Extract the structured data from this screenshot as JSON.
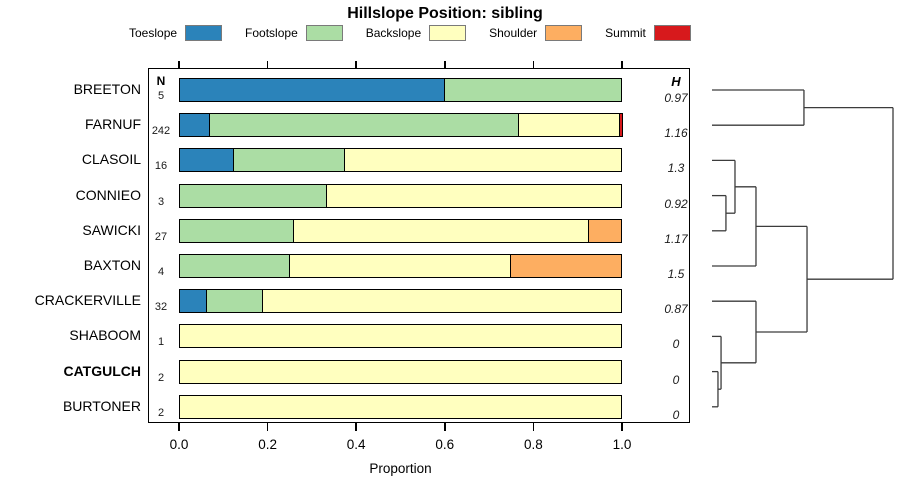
{
  "title": "Hillslope Position: sibling",
  "legend": {
    "items": [
      {
        "label": "Toeslope",
        "color": "#2B83BA"
      },
      {
        "label": "Footslope",
        "color": "#ABDDA4"
      },
      {
        "label": "Backslope",
        "color": "#FFFFBF"
      },
      {
        "label": "Shoulder",
        "color": "#FDAE61"
      },
      {
        "label": "Summit",
        "color": "#D7191C"
      }
    ]
  },
  "columns": {
    "n_header": "N",
    "h_header": "H"
  },
  "axis": {
    "label": "Proportion",
    "ticks": [
      "0.0",
      "0.2",
      "0.4",
      "0.6",
      "0.8",
      "1.0"
    ],
    "tick_values": [
      0,
      0.2,
      0.4,
      0.6,
      0.8,
      1.0
    ],
    "range": [
      0.0,
      1.0
    ]
  },
  "chart_data": {
    "type": "bar",
    "orientation": "horizontal-stacked",
    "title": "Hillslope Position: sibling",
    "xlabel": "Proportion",
    "xlim": [
      0.0,
      1.0
    ],
    "categories": [
      "Toeslope",
      "Footslope",
      "Backslope",
      "Shoulder",
      "Summit"
    ],
    "rows": [
      {
        "label": "BREETON",
        "n": "5",
        "h": "0.97",
        "bold": false,
        "segments": [
          {
            "category": "Toeslope",
            "value": 0.6
          },
          {
            "category": "Footslope",
            "value": 0.4
          }
        ]
      },
      {
        "label": "FARNUF",
        "n": "242",
        "h": "1.16",
        "bold": false,
        "segments": [
          {
            "category": "Toeslope",
            "value": 0.07
          },
          {
            "category": "Footslope",
            "value": 0.698
          },
          {
            "category": "Backslope",
            "value": 0.228
          },
          {
            "category": "Summit",
            "value": 0.004
          }
        ]
      },
      {
        "label": "CLASOIL",
        "n": "16",
        "h": "1.3",
        "bold": false,
        "segments": [
          {
            "category": "Toeslope",
            "value": 0.125
          },
          {
            "category": "Footslope",
            "value": 0.25
          },
          {
            "category": "Backslope",
            "value": 0.625
          }
        ]
      },
      {
        "label": "CONNIEO",
        "n": "3",
        "h": "0.92",
        "bold": false,
        "segments": [
          {
            "category": "Footslope",
            "value": 0.333
          },
          {
            "category": "Backslope",
            "value": 0.667
          }
        ]
      },
      {
        "label": "SAWICKI",
        "n": "27",
        "h": "1.17",
        "bold": false,
        "segments": [
          {
            "category": "Footslope",
            "value": 0.259
          },
          {
            "category": "Backslope",
            "value": 0.667
          },
          {
            "category": "Shoulder",
            "value": 0.074
          }
        ]
      },
      {
        "label": "BAXTON",
        "n": "4",
        "h": "1.5",
        "bold": false,
        "segments": [
          {
            "category": "Footslope",
            "value": 0.25
          },
          {
            "category": "Backslope",
            "value": 0.5
          },
          {
            "category": "Shoulder",
            "value": 0.25
          }
        ]
      },
      {
        "label": "CRACKERVILLE",
        "n": "32",
        "h": "0.87",
        "bold": false,
        "segments": [
          {
            "category": "Toeslope",
            "value": 0.063
          },
          {
            "category": "Footslope",
            "value": 0.127
          },
          {
            "category": "Backslope",
            "value": 0.81
          }
        ]
      },
      {
        "label": "SHABOOM",
        "n": "1",
        "h": "0",
        "bold": false,
        "segments": [
          {
            "category": "Backslope",
            "value": 1.0
          }
        ]
      },
      {
        "label": "CATGULCH",
        "n": "2",
        "h": "0",
        "bold": true,
        "segments": [
          {
            "category": "Backslope",
            "value": 1.0
          }
        ]
      },
      {
        "label": "BURTONER",
        "n": "2",
        "h": "0",
        "bold": false,
        "segments": [
          {
            "category": "Backslope",
            "value": 1.0
          }
        ]
      }
    ],
    "dendrogram": {
      "leaf_order": [
        "BREETON",
        "FARNUF",
        "CLASOIL",
        "CONNIEO",
        "SAWICKI",
        "BAXTON",
        "CRACKERVILLE",
        "SHABOOM",
        "CATGULCH",
        "BURTONER"
      ],
      "merges": [
        {
          "id": "m1",
          "a": "CATGULCH",
          "b": "BURTONER",
          "height": 0.033
        },
        {
          "id": "m2",
          "a": "SHABOOM",
          "b": "m1",
          "height": 0.05
        },
        {
          "id": "m3",
          "a": "CONNIEO",
          "b": "SAWICKI",
          "height": 0.077
        },
        {
          "id": "m4",
          "a": "CLASOIL",
          "b": "m3",
          "height": 0.127
        },
        {
          "id": "m5",
          "a": "m4",
          "b": "BAXTON",
          "height": 0.243
        },
        {
          "id": "m6",
          "a": "CRACKERVILLE",
          "b": "m2",
          "height": 0.243
        },
        {
          "id": "m8",
          "a": "BREETON",
          "b": "FARNUF",
          "height": 0.508
        },
        {
          "id": "m7",
          "a": "m5",
          "b": "m6",
          "height": 0.525
        },
        {
          "id": "root",
          "a": "m8",
          "b": "m7",
          "height": 1.0
        }
      ]
    }
  }
}
